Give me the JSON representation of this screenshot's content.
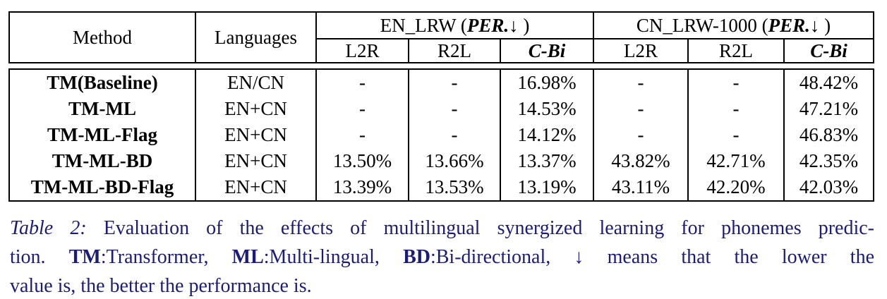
{
  "colors": {
    "caption_text": "#1b1b78",
    "table_text": "#000000",
    "table_border": "#000000",
    "background": "#ffffff"
  },
  "table": {
    "col_method": "Method",
    "col_languages": "Languages",
    "groups": [
      {
        "prefix": "EN_LRW (",
        "metric": "PER.",
        "suffix": " ↓ )"
      },
      {
        "prefix": "CN_LRW-1000 (",
        "metric": "PER.",
        "suffix": " ↓ )"
      }
    ],
    "subheaders": [
      "L2R",
      "R2L",
      "C-Bi",
      "L2R",
      "R2L",
      "C-Bi"
    ],
    "rows": [
      {
        "cells": [
          "TM(Baseline)",
          "EN/CN",
          "-",
          "-",
          "16.98%",
          "-",
          "-",
          "48.42%"
        ]
      },
      {
        "cells": [
          "TM-ML",
          "EN+CN",
          "-",
          "-",
          "14.53%",
          "-",
          "-",
          "47.21%"
        ]
      },
      {
        "cells": [
          "TM-ML-Flag",
          "EN+CN",
          "-",
          "-",
          "14.12%",
          "-",
          "-",
          "46.83%"
        ]
      },
      {
        "cells": [
          "TM-ML-BD",
          "EN+CN",
          "13.50%",
          "13.66%",
          "13.37%",
          "43.82%",
          "42.71%",
          "42.35%"
        ]
      },
      {
        "cells": [
          "TM-ML-BD-Flag",
          "EN+CN",
          "13.39%",
          "13.53%",
          "13.19%",
          "43.11%",
          "42.20%",
          "42.03%"
        ]
      }
    ]
  },
  "caption": {
    "line1": {
      "label": "Table 2:",
      "text": " Evaluation of the effects of multilingual synergized learning for phonemes predic-"
    },
    "line2": {
      "pre": "tion.  ",
      "abbr1": "TM",
      "text1": ":Transformer, ",
      "abbr2": "ML",
      "text2": ":Multi-lingual, ",
      "abbr3": "BD",
      "text3": ":Bi-directional, ↓ means that the lower the"
    },
    "line3": "value is, the better the performance is."
  }
}
